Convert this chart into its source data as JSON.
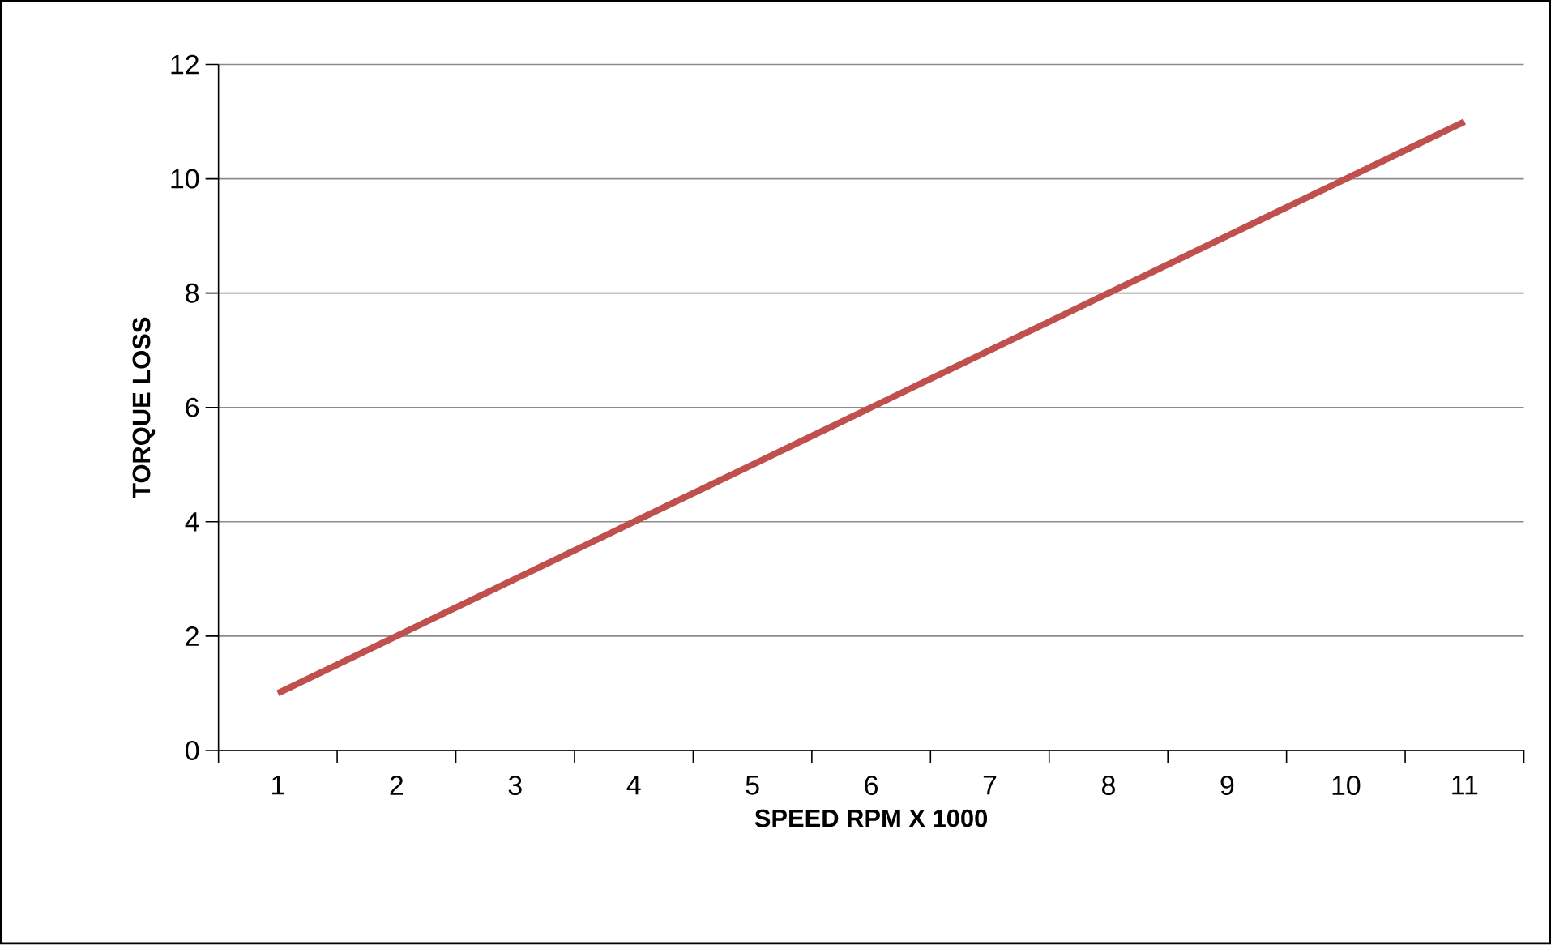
{
  "chart_data": {
    "type": "line",
    "xlabel": "SPEED RPM X 1000",
    "ylabel": "TORQUE LOSS",
    "categories": [
      "1",
      "2",
      "3",
      "4",
      "5",
      "6",
      "7",
      "8",
      "9",
      "10",
      "11"
    ],
    "series": [
      {
        "color": "#c0504d",
        "values": [
          1,
          2,
          3,
          4,
          5,
          6,
          7,
          8,
          9,
          10,
          11
        ]
      }
    ],
    "ylim": [
      0,
      12
    ],
    "yticks": [
      0,
      2,
      4,
      6,
      8,
      10,
      12
    ],
    "grid": "y",
    "marker": "none",
    "line_style": "solid",
    "legend": false
  }
}
